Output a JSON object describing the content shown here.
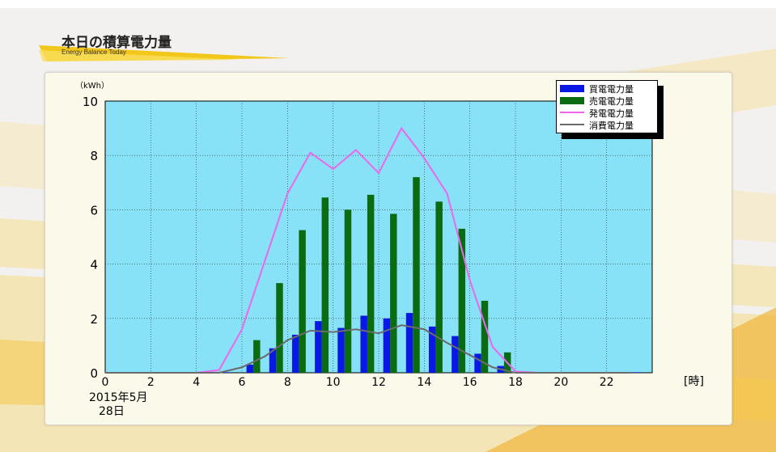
{
  "header": {
    "title": "本日の積算電力量",
    "subtitle": "Energy Balance Today"
  },
  "chart_data": {
    "type": "bar",
    "y_unit": "（kWh）",
    "x_unit": "[時]",
    "date_line1": "2015年5月",
    "date_line2": "28日",
    "ylim": [
      0,
      10
    ],
    "xlim": [
      0,
      24
    ],
    "y_ticks": [
      0,
      2,
      4,
      6,
      8,
      10
    ],
    "x_ticks": [
      0,
      2,
      4,
      6,
      8,
      10,
      12,
      14,
      16,
      18,
      20,
      22
    ],
    "grid": true,
    "legend_position": "top-right",
    "colors": {
      "plot_bg": "#87e1f7",
      "buy": "#0a18e6",
      "sell": "#0b6b10",
      "gen": "#ee66ee",
      "cons": "#6b6b6b"
    },
    "hours": [
      0,
      1,
      2,
      3,
      4,
      5,
      6,
      7,
      8,
      9,
      10,
      11,
      12,
      13,
      14,
      15,
      16,
      17,
      18,
      19,
      20,
      21,
      22,
      23
    ],
    "series": [
      {
        "name": "買電電力量",
        "kind": "bar",
        "values": [
          0.02,
          0.02,
          0.02,
          0.02,
          0.02,
          0.02,
          0.3,
          0.9,
          1.4,
          1.9,
          1.65,
          2.1,
          2.0,
          2.2,
          1.7,
          1.35,
          0.7,
          0.25,
          0.02,
          0.02,
          0.02,
          0.02,
          0.02,
          0.02
        ]
      },
      {
        "name": "売電電力量",
        "kind": "bar",
        "values": [
          0,
          0,
          0,
          0,
          0,
          0,
          1.2,
          3.3,
          5.25,
          6.45,
          6.0,
          6.55,
          5.85,
          7.2,
          6.3,
          5.3,
          2.65,
          0.75,
          0,
          0,
          0,
          0,
          0,
          0
        ]
      },
      {
        "name": "発電電力量",
        "kind": "line",
        "values": [
          0,
          0,
          0,
          0,
          0,
          0.1,
          1.6,
          4.1,
          6.6,
          8.1,
          7.5,
          8.2,
          7.35,
          9.0,
          7.9,
          6.6,
          3.4,
          0.95,
          0.05,
          0,
          0,
          0,
          0,
          0
        ]
      },
      {
        "name": "消費電力量",
        "kind": "line",
        "values": [
          0,
          0,
          0,
          0,
          0,
          0,
          0.2,
          0.6,
          1.2,
          1.55,
          1.5,
          1.6,
          1.45,
          1.75,
          1.6,
          1.1,
          0.65,
          0.2,
          0,
          0,
          0,
          0,
          0,
          0
        ]
      }
    ]
  }
}
